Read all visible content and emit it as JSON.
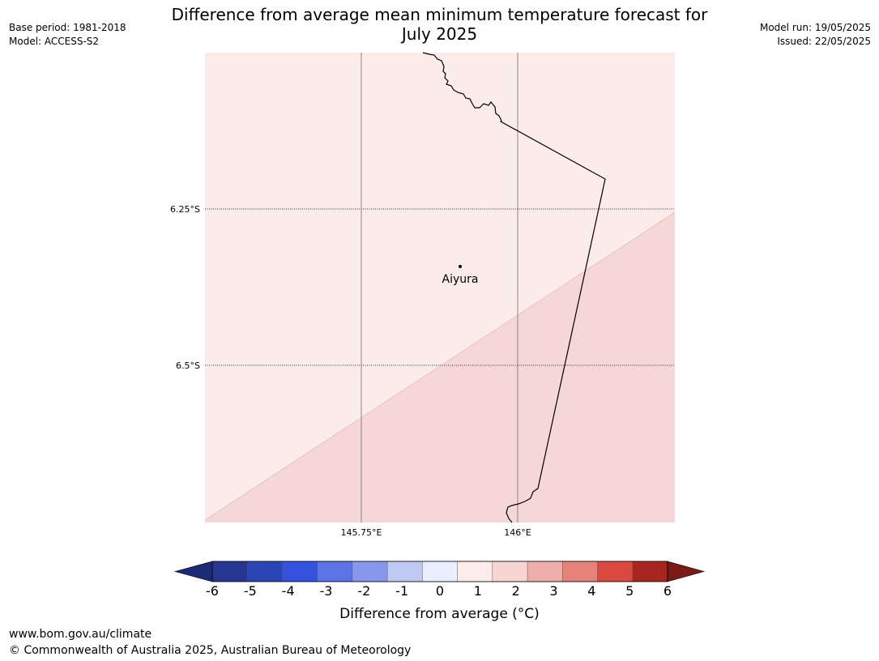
{
  "title_line1": "Difference from average mean minimum temperature forecast for",
  "title_line2": "July 2025",
  "meta_left": {
    "base_period": "Base period: 1981-2018",
    "model": "Model: ACCESS-S2"
  },
  "meta_right": {
    "model_run": "Model run: 19/05/2025",
    "issued": "Issued: 22/05/2025"
  },
  "map": {
    "lat_labels": [
      "6.25°S",
      "6.5°S"
    ],
    "lon_labels": [
      "145.75°E",
      "146°E"
    ],
    "place": {
      "name": "Aiyura"
    },
    "fill_colors": {
      "light": "#fbebe9",
      "medium": "#f5d7d5"
    }
  },
  "colorbar": {
    "label": "Difference from average (°C)",
    "ticks": [
      "-6",
      "-5",
      "-4",
      "-3",
      "-2",
      "-1",
      "0",
      "1",
      "2",
      "3",
      "4",
      "5",
      "6"
    ],
    "colors": [
      "#243691",
      "#2b44b6",
      "#3352e0",
      "#5b73e6",
      "#8797ec",
      "#c0c8f4",
      "#eaeefd",
      "#fcecea",
      "#f6d5d2",
      "#eeafaa",
      "#e7827b",
      "#d9493f",
      "#a72620"
    ],
    "extend_low": "#1c2a78",
    "extend_high": "#7b1a16"
  },
  "footer": {
    "url": "www.bom.gov.au/climate",
    "copyright": "© Commonwealth of Australia 2025, Australian Bureau of Meteorology"
  }
}
